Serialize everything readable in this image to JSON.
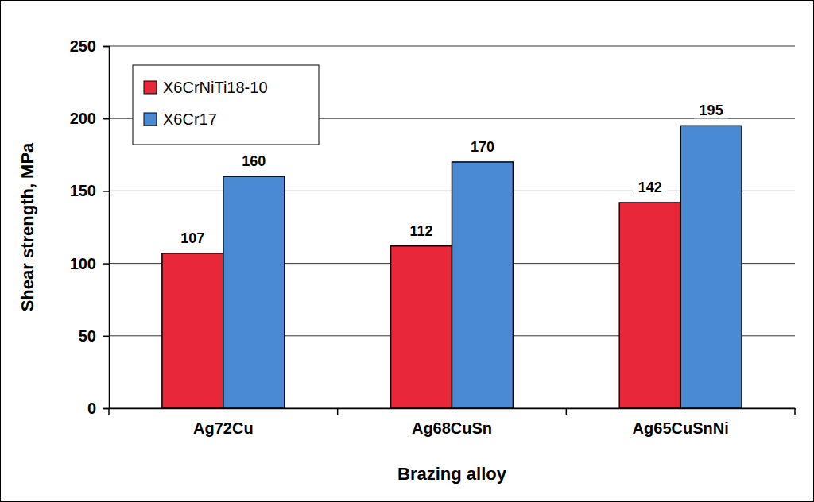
{
  "chart_data": {
    "type": "bar",
    "x_label": "Brazing alloy",
    "y_label": "Shear strength, MPa",
    "categories": [
      "Ag72Cu",
      "Ag68CuSn",
      "Ag65CuSnNi"
    ],
    "series": [
      {
        "name": "X6CrNiTi18-10",
        "color": "#e8283a",
        "values": [
          107,
          112,
          142
        ]
      },
      {
        "name": "X6Cr17",
        "color": "#4a8ad4",
        "values": [
          160,
          170,
          195
        ]
      }
    ],
    "ylim": [
      0,
      250
    ],
    "yticks": [
      0,
      50,
      100,
      150,
      200,
      250
    ],
    "grid": true,
    "legend": "upper left",
    "data_labels": true
  }
}
